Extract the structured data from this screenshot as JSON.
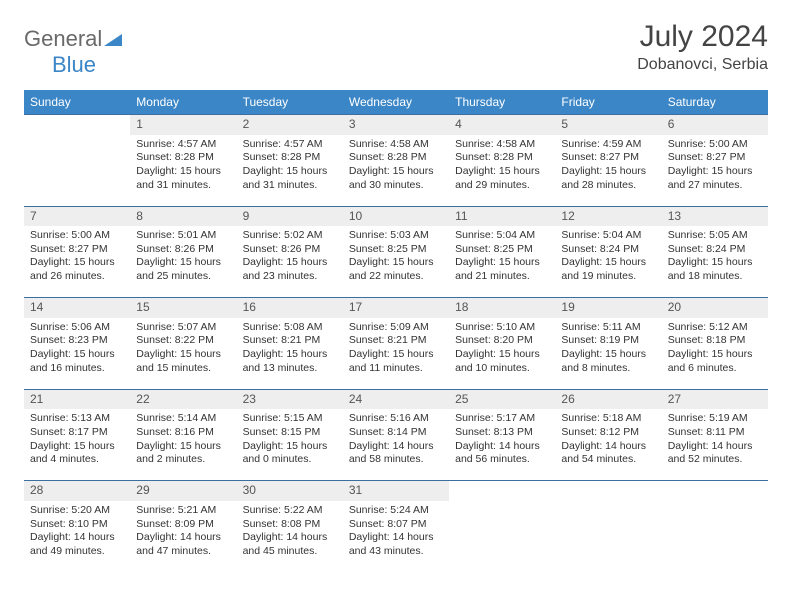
{
  "logo": {
    "text1": "General",
    "text2": "Blue"
  },
  "title": "July 2024",
  "location": "Dobanovci, Serbia",
  "colors": {
    "header_bg": "#3b86c6",
    "header_text": "#ffffff",
    "daynum_bg": "#eeeeee",
    "border": "#3b6fa0",
    "logo_gray": "#6a6a6a",
    "logo_blue": "#3b86c6"
  },
  "weekdays": [
    "Sunday",
    "Monday",
    "Tuesday",
    "Wednesday",
    "Thursday",
    "Friday",
    "Saturday"
  ],
  "weeks": [
    {
      "nums": [
        "",
        "1",
        "2",
        "3",
        "4",
        "5",
        "6"
      ],
      "cells": [
        null,
        {
          "sr": "4:57 AM",
          "ss": "8:28 PM",
          "dl": "15 hours and 31 minutes."
        },
        {
          "sr": "4:57 AM",
          "ss": "8:28 PM",
          "dl": "15 hours and 31 minutes."
        },
        {
          "sr": "4:58 AM",
          "ss": "8:28 PM",
          "dl": "15 hours and 30 minutes."
        },
        {
          "sr": "4:58 AM",
          "ss": "8:28 PM",
          "dl": "15 hours and 29 minutes."
        },
        {
          "sr": "4:59 AM",
          "ss": "8:27 PM",
          "dl": "15 hours and 28 minutes."
        },
        {
          "sr": "5:00 AM",
          "ss": "8:27 PM",
          "dl": "15 hours and 27 minutes."
        }
      ]
    },
    {
      "nums": [
        "7",
        "8",
        "9",
        "10",
        "11",
        "12",
        "13"
      ],
      "cells": [
        {
          "sr": "5:00 AM",
          "ss": "8:27 PM",
          "dl": "15 hours and 26 minutes."
        },
        {
          "sr": "5:01 AM",
          "ss": "8:26 PM",
          "dl": "15 hours and 25 minutes."
        },
        {
          "sr": "5:02 AM",
          "ss": "8:26 PM",
          "dl": "15 hours and 23 minutes."
        },
        {
          "sr": "5:03 AM",
          "ss": "8:25 PM",
          "dl": "15 hours and 22 minutes."
        },
        {
          "sr": "5:04 AM",
          "ss": "8:25 PM",
          "dl": "15 hours and 21 minutes."
        },
        {
          "sr": "5:04 AM",
          "ss": "8:24 PM",
          "dl": "15 hours and 19 minutes."
        },
        {
          "sr": "5:05 AM",
          "ss": "8:24 PM",
          "dl": "15 hours and 18 minutes."
        }
      ]
    },
    {
      "nums": [
        "14",
        "15",
        "16",
        "17",
        "18",
        "19",
        "20"
      ],
      "cells": [
        {
          "sr": "5:06 AM",
          "ss": "8:23 PM",
          "dl": "15 hours and 16 minutes."
        },
        {
          "sr": "5:07 AM",
          "ss": "8:22 PM",
          "dl": "15 hours and 15 minutes."
        },
        {
          "sr": "5:08 AM",
          "ss": "8:21 PM",
          "dl": "15 hours and 13 minutes."
        },
        {
          "sr": "5:09 AM",
          "ss": "8:21 PM",
          "dl": "15 hours and 11 minutes."
        },
        {
          "sr": "5:10 AM",
          "ss": "8:20 PM",
          "dl": "15 hours and 10 minutes."
        },
        {
          "sr": "5:11 AM",
          "ss": "8:19 PM",
          "dl": "15 hours and 8 minutes."
        },
        {
          "sr": "5:12 AM",
          "ss": "8:18 PM",
          "dl": "15 hours and 6 minutes."
        }
      ]
    },
    {
      "nums": [
        "21",
        "22",
        "23",
        "24",
        "25",
        "26",
        "27"
      ],
      "cells": [
        {
          "sr": "5:13 AM",
          "ss": "8:17 PM",
          "dl": "15 hours and 4 minutes."
        },
        {
          "sr": "5:14 AM",
          "ss": "8:16 PM",
          "dl": "15 hours and 2 minutes."
        },
        {
          "sr": "5:15 AM",
          "ss": "8:15 PM",
          "dl": "15 hours and 0 minutes."
        },
        {
          "sr": "5:16 AM",
          "ss": "8:14 PM",
          "dl": "14 hours and 58 minutes."
        },
        {
          "sr": "5:17 AM",
          "ss": "8:13 PM",
          "dl": "14 hours and 56 minutes."
        },
        {
          "sr": "5:18 AM",
          "ss": "8:12 PM",
          "dl": "14 hours and 54 minutes."
        },
        {
          "sr": "5:19 AM",
          "ss": "8:11 PM",
          "dl": "14 hours and 52 minutes."
        }
      ]
    },
    {
      "nums": [
        "28",
        "29",
        "30",
        "31",
        "",
        "",
        ""
      ],
      "cells": [
        {
          "sr": "5:20 AM",
          "ss": "8:10 PM",
          "dl": "14 hours and 49 minutes."
        },
        {
          "sr": "5:21 AM",
          "ss": "8:09 PM",
          "dl": "14 hours and 47 minutes."
        },
        {
          "sr": "5:22 AM",
          "ss": "8:08 PM",
          "dl": "14 hours and 45 minutes."
        },
        {
          "sr": "5:24 AM",
          "ss": "8:07 PM",
          "dl": "14 hours and 43 minutes."
        },
        null,
        null,
        null
      ]
    }
  ],
  "labels": {
    "sunrise": "Sunrise: ",
    "sunset": "Sunset: ",
    "daylight": "Daylight: "
  }
}
